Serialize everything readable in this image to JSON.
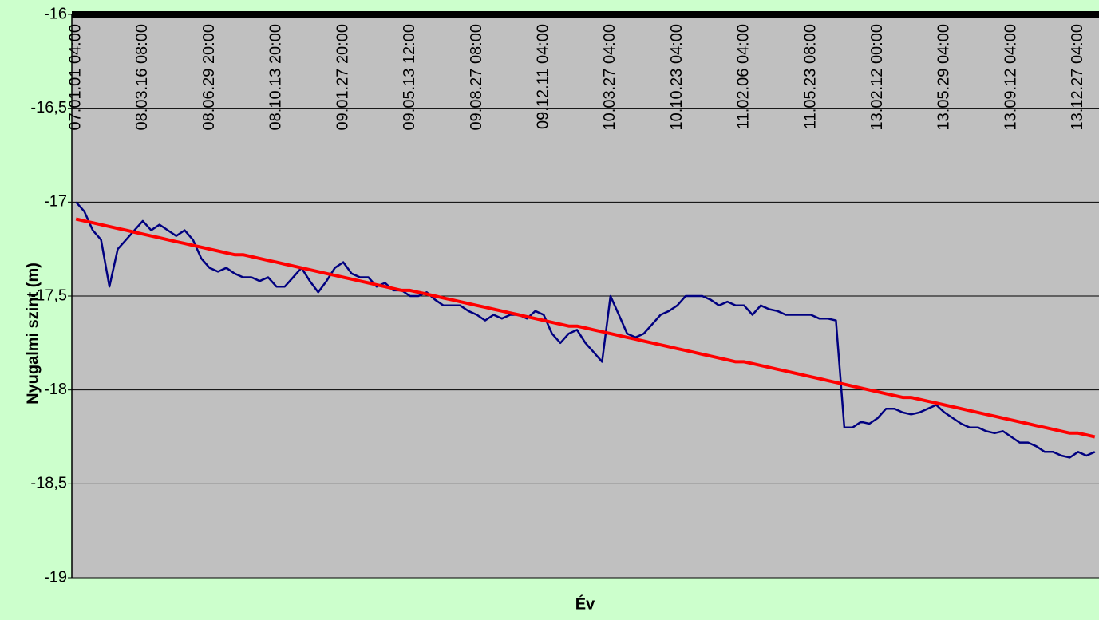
{
  "chart_data": {
    "type": "line",
    "x_label": "Év",
    "y_label": "Nyugalmi szint (m)",
    "ylim": [
      -19,
      -16
    ],
    "yticks": [
      -16,
      {
        "value": -16.5,
        "label": "-16,5"
      },
      -17,
      {
        "value": -17.5,
        "label": "-17,5"
      },
      -18,
      {
        "value": -18.5,
        "label": "-18,5"
      },
      -19
    ],
    "grid": true,
    "categories": [
      "07.01.01 04:00",
      null,
      null,
      null,
      null,
      null,
      null,
      null,
      "08.03.16 08:00",
      null,
      null,
      null,
      null,
      null,
      null,
      null,
      "08.06.29 20:00",
      null,
      null,
      null,
      null,
      null,
      null,
      null,
      "08.10.13 20:00",
      null,
      null,
      null,
      null,
      null,
      null,
      null,
      "09.01.27 20:00",
      null,
      null,
      null,
      null,
      null,
      null,
      null,
      "09.05.13 12:00",
      null,
      null,
      null,
      null,
      null,
      null,
      null,
      "09.08.27 08:00",
      null,
      null,
      null,
      null,
      null,
      null,
      null,
      "09.12.11 04:00",
      null,
      null,
      null,
      null,
      null,
      null,
      null,
      "10.03.27 04:00",
      null,
      null,
      null,
      null,
      null,
      null,
      null,
      "10.10.23 04:00",
      null,
      null,
      null,
      null,
      null,
      null,
      null,
      "11.02.06 04:00",
      null,
      null,
      null,
      null,
      null,
      null,
      null,
      "11.05.23 08:00",
      null,
      null,
      null,
      null,
      null,
      null,
      null,
      "13.02.12 00:00",
      null,
      null,
      null,
      null,
      null,
      null,
      null,
      "13.05.29 04:00",
      null,
      null,
      null,
      null,
      null,
      null,
      null,
      "13.09.12 04:00",
      null,
      null,
      null,
      null,
      null,
      null,
      null,
      "13.12.27 04:00",
      null,
      null
    ],
    "series": [
      {
        "color": "#000080",
        "values": [
          -17.0,
          -17.05,
          -17.15,
          -17.2,
          -17.45,
          -17.25,
          -17.2,
          -17.15,
          -17.1,
          -17.15,
          -17.12,
          -17.15,
          -17.18,
          -17.15,
          -17.2,
          -17.3,
          -17.35,
          -17.37,
          -17.35,
          -17.38,
          -17.4,
          -17.4,
          -17.42,
          -17.4,
          -17.45,
          -17.45,
          -17.4,
          -17.35,
          -17.42,
          -17.48,
          -17.42,
          -17.35,
          -17.32,
          -17.38,
          -17.4,
          -17.4,
          -17.45,
          -17.43,
          -17.47,
          -17.47,
          -17.5,
          -17.5,
          -17.48,
          -17.52,
          -17.55,
          -17.55,
          -17.55,
          -17.58,
          -17.6,
          -17.63,
          -17.6,
          -17.62,
          -17.6,
          -17.6,
          -17.62,
          -17.58,
          -17.6,
          -17.7,
          -17.75,
          -17.7,
          -17.68,
          -17.75,
          -17.8,
          -17.85,
          -17.5,
          -17.6,
          -17.7,
          -17.72,
          -17.7,
          -17.65,
          -17.6,
          -17.58,
          -17.55,
          -17.5,
          -17.5,
          -17.5,
          -17.52,
          -17.55,
          -17.53,
          -17.55,
          -17.55,
          -17.6,
          -17.55,
          -17.57,
          -17.58,
          -17.6,
          -17.6,
          -17.6,
          -17.6,
          -17.62,
          -17.62,
          -17.63,
          -18.2,
          -18.2,
          -18.17,
          -18.18,
          -18.15,
          -18.1,
          -18.1,
          -18.12,
          -18.13,
          -18.12,
          -18.1,
          -18.08,
          -18.12,
          -18.15,
          -18.18,
          -18.2,
          -18.2,
          -18.22,
          -18.23,
          -18.22,
          -18.25,
          -18.28,
          -18.28,
          -18.3,
          -18.33,
          -18.33,
          -18.35,
          -18.36,
          -18.33,
          -18.35,
          -18.33
        ]
      },
      {
        "color": "#ff0000",
        "values": [
          -17.09,
          -17.1,
          -17.11,
          -17.12,
          -17.13,
          -17.14,
          -17.15,
          -17.16,
          -17.17,
          -17.18,
          -17.19,
          -17.2,
          -17.21,
          -17.22,
          -17.23,
          -17.24,
          -17.25,
          -17.26,
          -17.27,
          -17.28,
          -17.28,
          -17.29,
          -17.3,
          -17.31,
          -17.32,
          -17.33,
          -17.34,
          -17.35,
          -17.36,
          -17.37,
          -17.38,
          -17.39,
          -17.4,
          -17.41,
          -17.42,
          -17.43,
          -17.44,
          -17.45,
          -17.46,
          -17.47,
          -17.47,
          -17.48,
          -17.49,
          -17.5,
          -17.51,
          -17.52,
          -17.53,
          -17.54,
          -17.55,
          -17.56,
          -17.57,
          -17.58,
          -17.59,
          -17.6,
          -17.61,
          -17.62,
          -17.63,
          -17.64,
          -17.65,
          -17.66,
          -17.66,
          -17.67,
          -17.68,
          -17.69,
          -17.7,
          -17.71,
          -17.72,
          -17.73,
          -17.74,
          -17.75,
          -17.76,
          -17.77,
          -17.78,
          -17.79,
          -17.8,
          -17.81,
          -17.82,
          -17.83,
          -17.84,
          -17.85,
          -17.85,
          -17.86,
          -17.87,
          -17.88,
          -17.89,
          -17.9,
          -17.91,
          -17.92,
          -17.93,
          -17.94,
          -17.95,
          -17.96,
          -17.97,
          -17.98,
          -17.99,
          -18.0,
          -18.01,
          -18.02,
          -18.03,
          -18.04,
          -18.04,
          -18.05,
          -18.06,
          -18.07,
          -18.08,
          -18.09,
          -18.1,
          -18.11,
          -18.12,
          -18.13,
          -18.14,
          -18.15,
          -18.16,
          -18.17,
          -18.18,
          -18.19,
          -18.2,
          -18.21,
          -18.22,
          -18.23,
          -18.23,
          -18.24,
          -18.25
        ]
      }
    ]
  }
}
